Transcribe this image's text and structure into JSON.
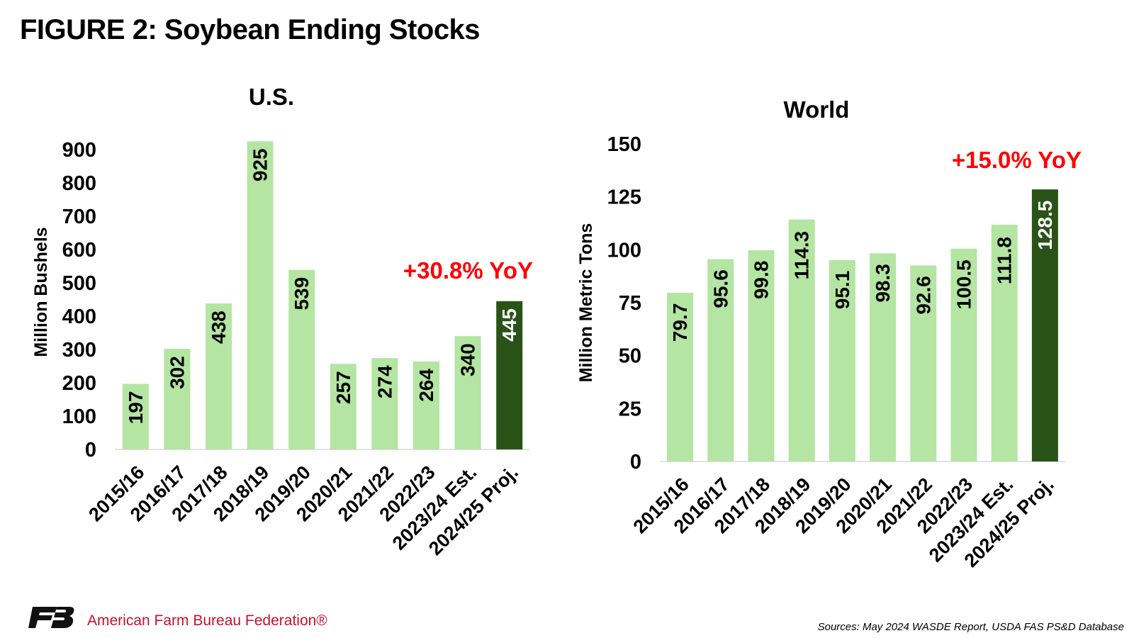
{
  "page": {
    "title": "FIGURE 2: Soybean Ending Stocks",
    "org_name": "American Farm Bureau Federation®",
    "source": "Sources: May 2024 WASDE Report, USDA FAS PS&D Database",
    "logo_icon": "farm-bureau-fb-logo"
  },
  "colors": {
    "bar_light": "#b4e5a2",
    "bar_highlight": "#2a5318",
    "annotation": "#ff0000",
    "org_text": "#c8102e"
  },
  "chart_data": [
    {
      "type": "bar",
      "title": "U.S.",
      "ylabel": "Million Bushels",
      "xlabel": "",
      "categories": [
        "2015/16",
        "2016/17",
        "2017/18",
        "2018/19",
        "2019/20",
        "2020/21",
        "2021/22",
        "2022/23",
        "2023/24 Est.",
        "2024/25 Proj."
      ],
      "values": [
        197,
        302,
        438,
        925,
        539,
        257,
        274,
        264,
        340,
        445
      ],
      "data_labels": [
        "197",
        "302",
        "438",
        "925",
        "539",
        "257",
        "274",
        "264",
        "340",
        "445"
      ],
      "highlight_index": 9,
      "ylim": [
        0,
        900
      ],
      "yticks": [
        "0",
        "100",
        "200",
        "300",
        "400",
        "500",
        "600",
        "700",
        "800",
        "900"
      ],
      "grid": false,
      "legend": "none",
      "annotation": "+30.8% YoY"
    },
    {
      "type": "bar",
      "title": "World",
      "ylabel": "Million Metric Tons",
      "xlabel": "",
      "categories": [
        "2015/16",
        "2016/17",
        "2017/18",
        "2018/19",
        "2019/20",
        "2020/21",
        "2021/22",
        "2022/23",
        "2023/24 Est.",
        "2024/25 Proj."
      ],
      "values": [
        79.7,
        95.6,
        99.8,
        114.3,
        95.1,
        98.3,
        92.6,
        100.5,
        111.8,
        128.5
      ],
      "data_labels": [
        "79.7",
        "95.6",
        "99.8",
        "114.3",
        "95.1",
        "98.3",
        "92.6",
        "100.5",
        "111.8",
        "128.5"
      ],
      "highlight_index": 9,
      "ylim": [
        0,
        150
      ],
      "yticks": [
        "0",
        "25",
        "50",
        "75",
        "100",
        "125",
        "150"
      ],
      "grid": false,
      "legend": "none",
      "annotation": "+15.0% YoY"
    }
  ]
}
